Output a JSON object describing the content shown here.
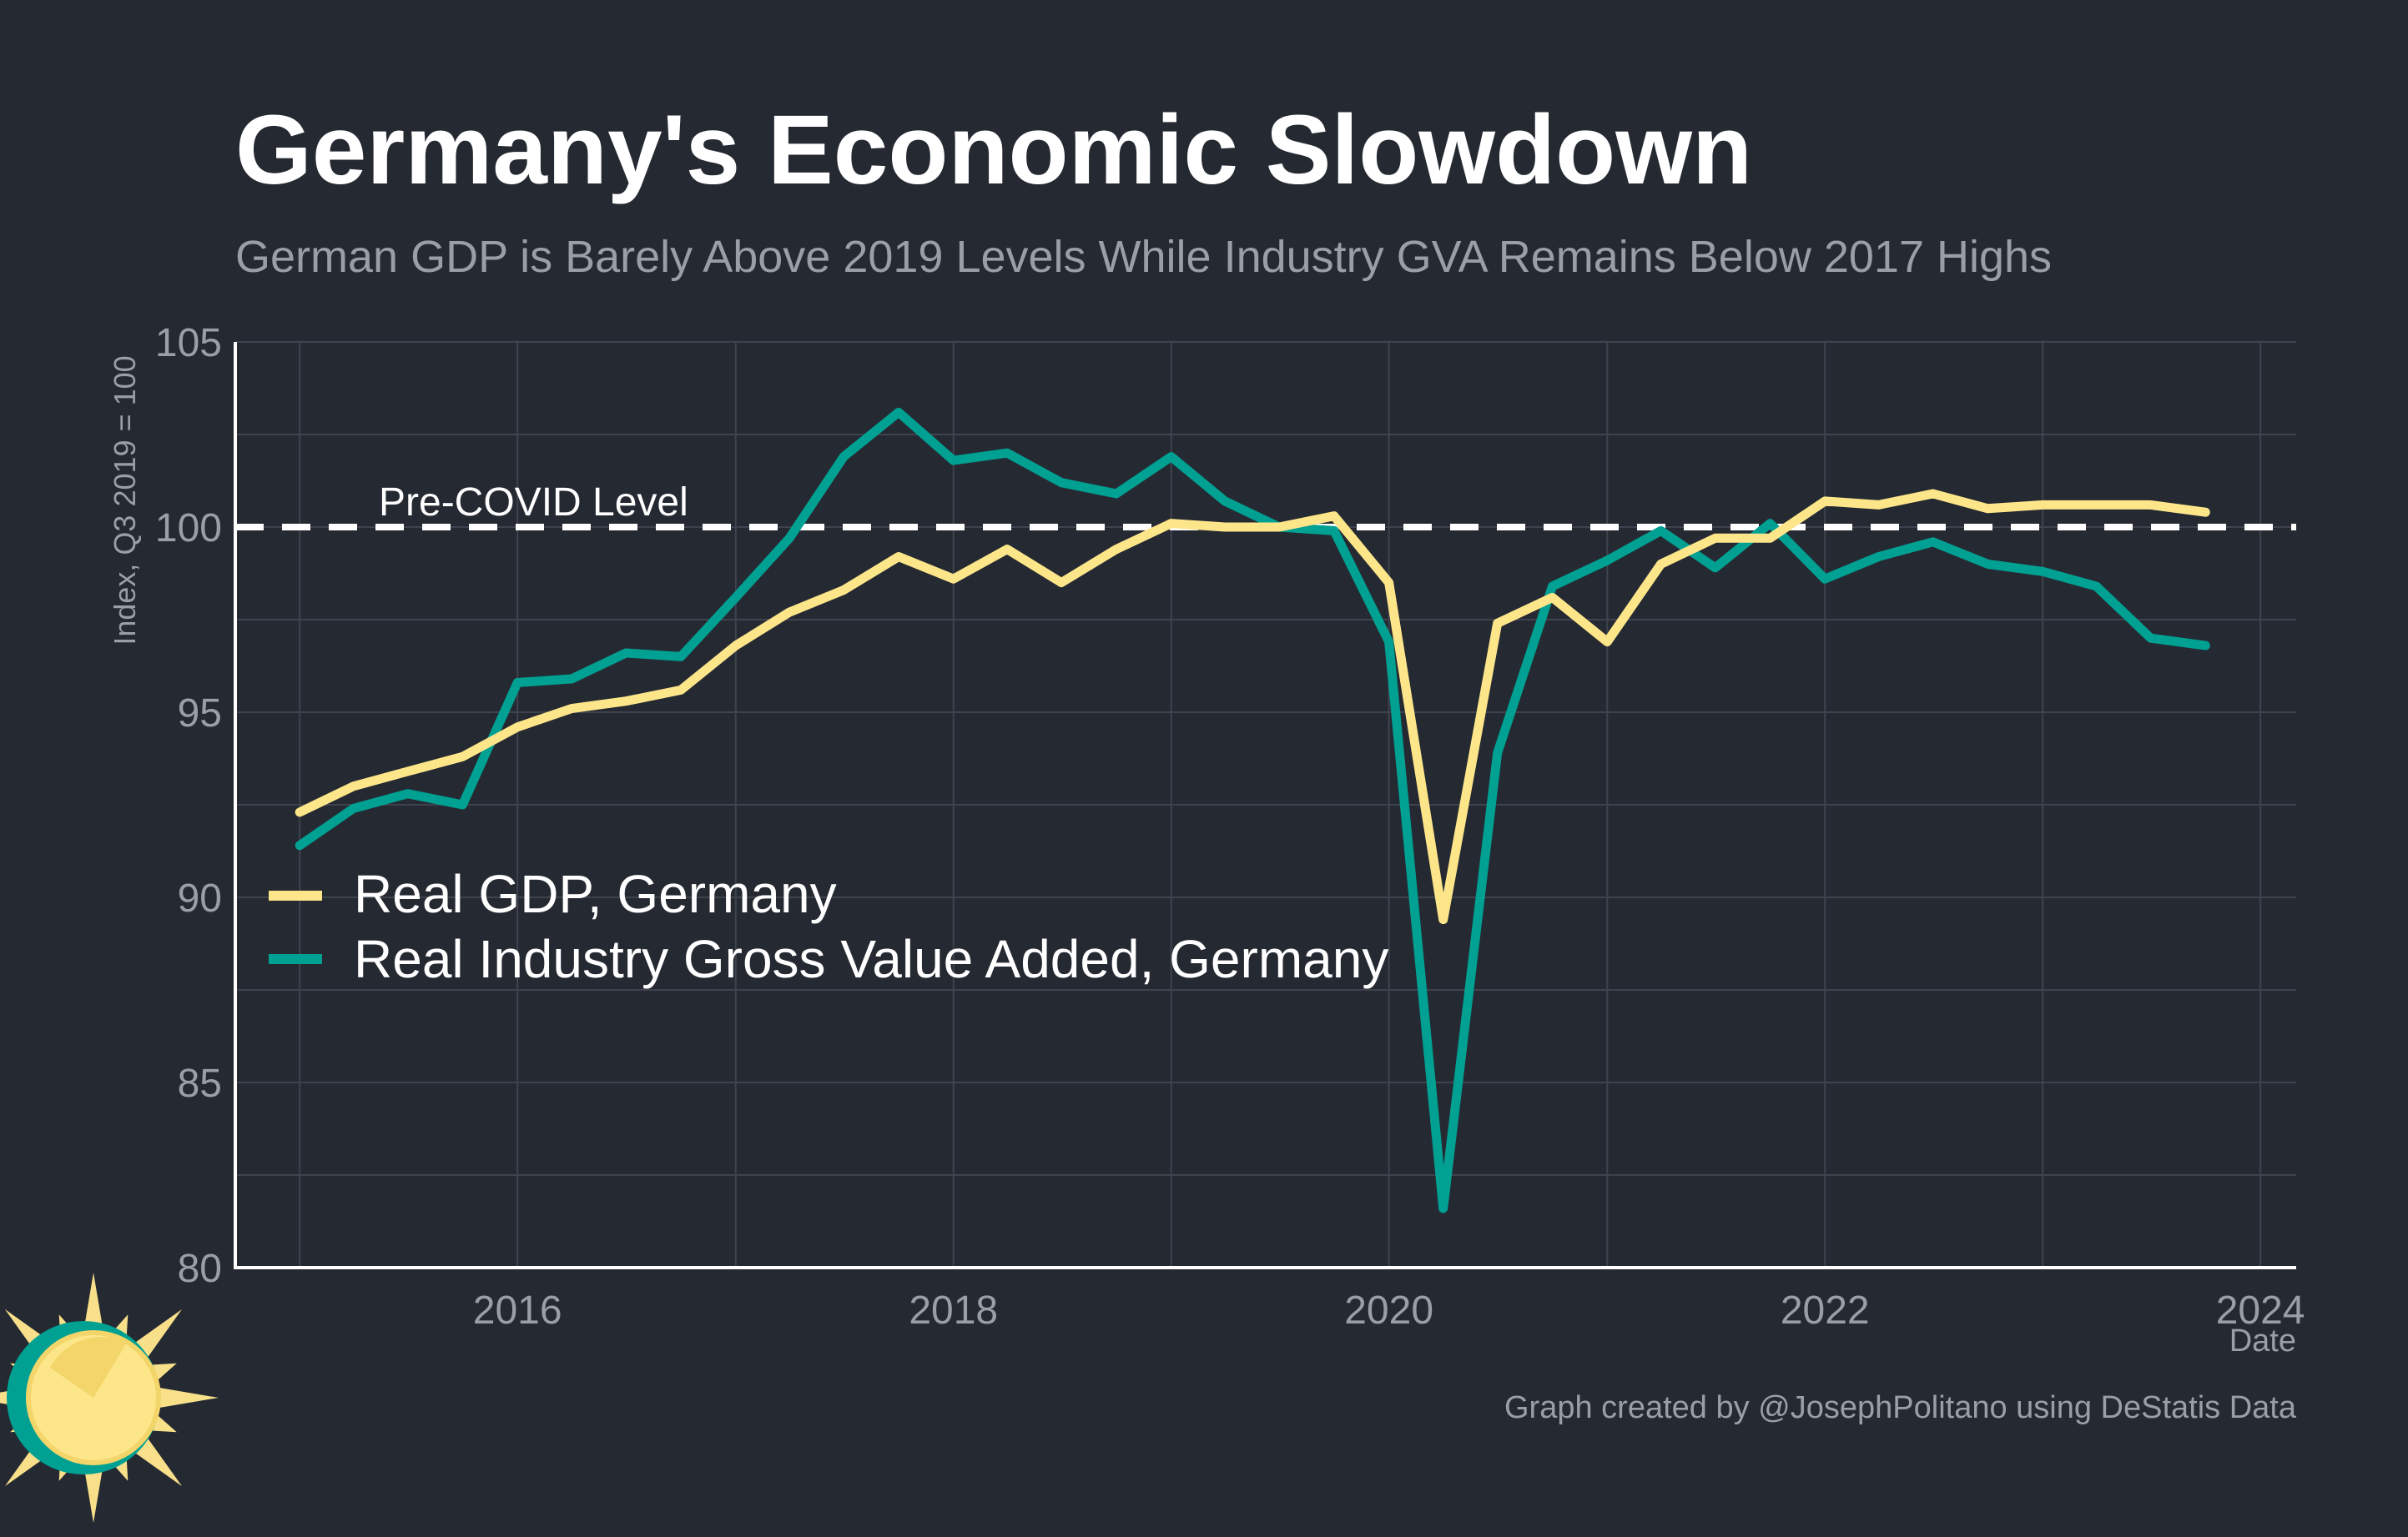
{
  "title": "Germany's Economic Slowdown",
  "subtitle": "German GDP is Barely Above 2019 Levels While Industry GVA Remains Below 2017 Highs",
  "credit": "Graph created by @JosephPolitano using DeStatis Data",
  "colors": {
    "background": "#252932",
    "title": "#ffffff",
    "muted": "#9a9ea6",
    "grid": "#3e434d",
    "axis": "#ffffff",
    "gdp": "#fde68a",
    "industry": "#00a092",
    "reference_line": "#ffffff",
    "logo_ring": "#00a092",
    "logo_sun": "#f8e08a"
  },
  "logo": {
    "icon": "sun-logo-icon"
  },
  "chart_data": {
    "type": "line",
    "title": "Germany's Economic Slowdown",
    "subtitle": "German GDP is Barely Above 2019 Levels While Industry GVA Remains Below 2017 Highs",
    "xlabel": "Date",
    "ylabel": "Index, Q3 2019 = 100",
    "xlim": [
      "2014-09-15",
      "2024-03-01"
    ],
    "ylim": [
      80,
      105
    ],
    "x_ticks": [
      "2016",
      "2018",
      "2020",
      "2022",
      "2024"
    ],
    "y_ticks": [
      80,
      85,
      90,
      95,
      100,
      105
    ],
    "grid": true,
    "legend_position": "left",
    "reference_line": {
      "y": 100,
      "label": "Pre-COVID Level",
      "style": "dashed"
    },
    "x": [
      "2015-01-01",
      "2015-04-01",
      "2015-07-01",
      "2015-10-01",
      "2016-01-01",
      "2016-04-01",
      "2016-07-01",
      "2016-10-01",
      "2017-01-01",
      "2017-04-01",
      "2017-07-01",
      "2017-10-01",
      "2018-01-01",
      "2018-04-01",
      "2018-07-01",
      "2018-10-01",
      "2019-01-01",
      "2019-04-01",
      "2019-07-01",
      "2019-10-01",
      "2020-01-01",
      "2020-04-01",
      "2020-07-01",
      "2020-10-01",
      "2021-01-01",
      "2021-04-01",
      "2021-07-01",
      "2021-10-01",
      "2022-01-01",
      "2022-04-01",
      "2022-07-01",
      "2022-10-01",
      "2023-01-01",
      "2023-04-01",
      "2023-07-01",
      "2023-10-01"
    ],
    "series": [
      {
        "name": "Real GDP, Germany",
        "color": "#fde68a",
        "values": [
          92.3,
          93.0,
          93.4,
          93.8,
          94.6,
          95.1,
          95.3,
          95.6,
          96.8,
          97.7,
          98.3,
          99.2,
          98.6,
          99.4,
          98.5,
          99.4,
          100.1,
          100.0,
          100.0,
          100.3,
          98.5,
          89.4,
          97.4,
          98.1,
          96.9,
          99.0,
          99.7,
          99.7,
          100.7,
          100.6,
          100.9,
          100.5,
          100.6,
          100.6,
          100.6,
          100.4
        ]
      },
      {
        "name": "Real Industry Gross Value Added, Germany",
        "color": "#00a092",
        "values": [
          91.4,
          92.4,
          92.8,
          92.5,
          95.8,
          95.9,
          96.6,
          96.5,
          98.1,
          99.7,
          101.9,
          103.1,
          101.8,
          102.0,
          101.2,
          100.9,
          101.9,
          100.7,
          100.0,
          99.9,
          96.9,
          81.6,
          93.9,
          98.4,
          99.1,
          99.9,
          98.9,
          100.1,
          98.6,
          99.2,
          99.6,
          99.0,
          98.8,
          98.4,
          97.0,
          96.8
        ]
      }
    ]
  }
}
